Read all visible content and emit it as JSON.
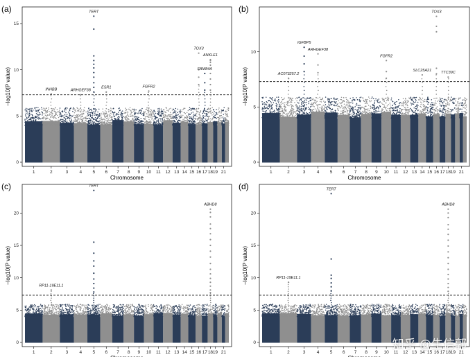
{
  "watermark": "知乎 @生信郭",
  "colors": {
    "dark": "#2b3d58",
    "light": "#8f8f8f",
    "threshold": "#222222"
  },
  "threshold": 7.3,
  "chromosome_labels": [
    "1",
    "2",
    "3",
    "4",
    "5",
    "6",
    "7",
    "8",
    "9",
    "10",
    "11",
    "12",
    "13",
    "14",
    "15",
    "16",
    "17",
    "18",
    "19",
    "21"
  ],
  "chart_data": [
    {
      "panel": "(a)",
      "type": "scatter",
      "subtype": "manhattan",
      "xlabel": "Chromosome",
      "ylabel": "−log10(P value)",
      "ylim": [
        0,
        16.5
      ],
      "yticks": [
        0,
        5,
        10,
        15
      ],
      "grid": false,
      "legend": "none",
      "genes": [
        {
          "label": "TERT",
          "chr": 5,
          "y": 15.8,
          "ladder": [
            14.4,
            11.5,
            11.0,
            10.6,
            10.2,
            9.7,
            9.2,
            8.6,
            8.1,
            7.6
          ]
        },
        {
          "label": "INHBB",
          "chr": 2,
          "y": 7.4,
          "ladder": []
        },
        {
          "label": "ARHGEF38",
          "chr": 4,
          "y": 7.3,
          "ladder": []
        },
        {
          "label": "ESR1",
          "chr": 6,
          "y": 7.6,
          "ladder": []
        },
        {
          "label": "FGFR2",
          "chr": 10,
          "y": 7.7,
          "ladder": []
        },
        {
          "label": "TOX3",
          "chr": 16,
          "y": 11.8,
          "ladder": [
            10.0,
            9.2,
            8.4
          ]
        },
        {
          "label": "FAM84A",
          "chr": 17,
          "y": 9.6,
          "ladder": [
            8.6,
            7.8
          ]
        },
        {
          "label": "ANKLE1",
          "chr": 18,
          "y": 11.1,
          "ladder": [
            11.0,
            10.8,
            10.5,
            10.1,
            9.6,
            9.0,
            8.4,
            7.8
          ]
        }
      ]
    },
    {
      "panel": "(b)",
      "type": "scatter",
      "subtype": "manhattan",
      "xlabel": "Chromosome",
      "ylabel": "−log10(P value)",
      "ylim": [
        0,
        13.8
      ],
      "yticks": [
        0,
        5,
        10
      ],
      "grid": false,
      "legend": "none",
      "genes": [
        {
          "label": "AC073257.2",
          "chr": 2,
          "y": 7.6,
          "ladder": []
        },
        {
          "label": "IGFBP5",
          "chr": 3,
          "y": 10.4,
          "ladder": [
            9.6,
            8.9,
            8.2
          ]
        },
        {
          "label": "ARHGEF38",
          "chr": 4,
          "y": 9.8,
          "ladder": [
            8.8,
            8.1
          ]
        },
        {
          "label": "FGFR2",
          "chr": 10,
          "y": 9.2,
          "ladder": [
            8.2,
            7.6
          ]
        },
        {
          "label": "SLC25A21",
          "chr": 14,
          "y": 7.9,
          "ladder": []
        },
        {
          "label": "TOX3",
          "chr": 16,
          "y": 13.2,
          "ladder": [
            12.3,
            11.8,
            8.5,
            8.0
          ]
        },
        {
          "label": "TTC39C",
          "chr": 18,
          "y": 7.7,
          "ladder": []
        }
      ]
    },
    {
      "panel": "(c)",
      "type": "scatter",
      "subtype": "manhattan",
      "xlabel": "Chromosome",
      "ylabel": "−log10(P value)",
      "ylim": [
        0,
        24
      ],
      "yticks": [
        0,
        5,
        10,
        15,
        20
      ],
      "grid": false,
      "legend": "none",
      "genes": [
        {
          "label": "TERT",
          "chr": 5,
          "y": 23.5,
          "ladder": [
            15.5,
            13.8,
            12.6,
            11.8,
            10.7,
            9.8,
            9.1,
            8.4,
            7.8
          ]
        },
        {
          "label": "RP11-19E11.1",
          "chr": 2,
          "y": 8.1,
          "ladder": []
        },
        {
          "label": "ABHD8",
          "chr": 18,
          "y": 20.6,
          "ladder": [
            20.1,
            19.4,
            18.3,
            17.6,
            16.8,
            15.9,
            15.0,
            14.1,
            13.2,
            12.2,
            11.3,
            10.6,
            9.9,
            9.3,
            8.7,
            8.1,
            7.7
          ]
        }
      ]
    },
    {
      "panel": "(d)",
      "type": "scatter",
      "subtype": "manhattan",
      "xlabel": "Chromosome",
      "ylabel": "−log10(P value)",
      "ylim": [
        0,
        24
      ],
      "yticks": [
        0,
        5,
        10,
        15,
        20
      ],
      "grid": false,
      "legend": "none",
      "genes": [
        {
          "label": "TERT",
          "chr": 5,
          "y": 23.0,
          "ladder": [
            12.9,
            10.4,
            9.9,
            9.2,
            8.6,
            8.0
          ]
        },
        {
          "label": "RP11-19E11.1",
          "chr": 2,
          "y": 9.3,
          "ladder": []
        },
        {
          "label": "ABHD8",
          "chr": 18,
          "y": 20.6,
          "ladder": [
            20.0,
            19.3,
            18.2,
            17.5,
            16.7,
            15.8,
            14.9,
            14.0,
            13.1,
            12.2,
            11.3,
            10.5,
            9.8,
            9.1,
            8.5,
            7.9
          ]
        }
      ]
    }
  ]
}
